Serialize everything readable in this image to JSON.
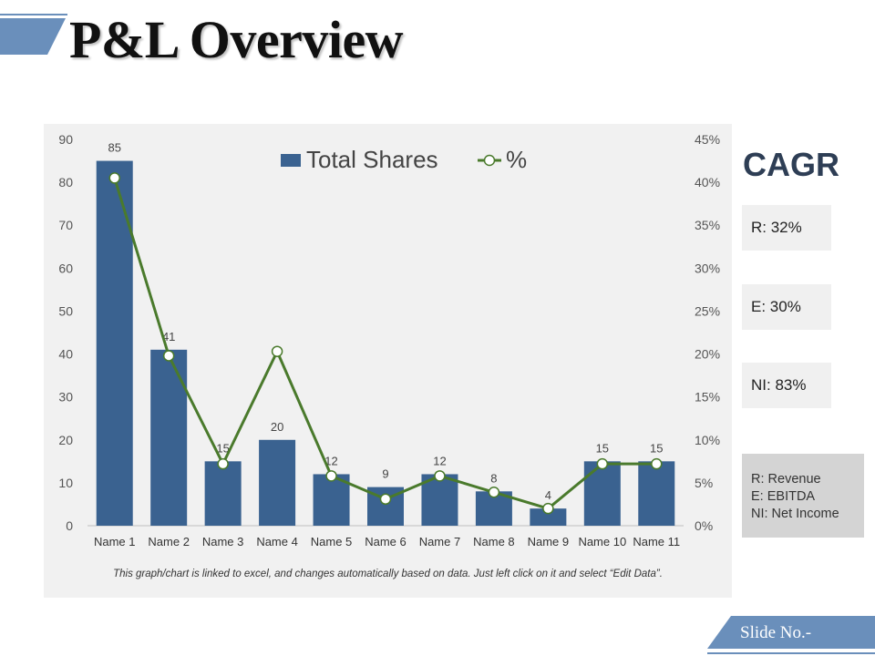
{
  "slide": {
    "title": "P&L Overview",
    "footer_label": "Slide No.-",
    "note": "This graph/chart is linked to excel, and changes automatically based on data. Just left click on it and select “Edit Data”."
  },
  "cagr": {
    "heading": "CAGR",
    "items": [
      {
        "label": "R: 32%"
      },
      {
        "label": "E: 30%"
      },
      {
        "label": "NI: 83%"
      }
    ],
    "legend": [
      "R: Revenue",
      "E: EBITDA",
      "NI: Net Income"
    ]
  },
  "colors": {
    "bar": "#3a6290",
    "line": "#4a7a2c",
    "marker_fill": "#ffffff",
    "accent_blue": "#6a8fbb",
    "panel": "#f1f1f1",
    "heading": "#2e3e55"
  },
  "chart_data": {
    "type": "bar",
    "categories": [
      "Name 1",
      "Name 2",
      "Name 3",
      "Name 4",
      "Name 5",
      "Name 6",
      "Name 7",
      "Name 8",
      "Name 9",
      "Name 10",
      "Name 11"
    ],
    "series": [
      {
        "name": "Total Shares",
        "axis": "left",
        "type": "bar",
        "values": [
          85,
          41,
          15,
          20,
          12,
          9,
          12,
          8,
          4,
          15,
          15
        ]
      },
      {
        "name": "%",
        "axis": "right",
        "type": "line",
        "marker": "circle",
        "values": [
          40.5,
          19.8,
          7.2,
          20.3,
          5.8,
          3.1,
          5.8,
          3.9,
          2.0,
          7.2,
          7.2
        ]
      }
    ],
    "data_labels": [
      "85",
      "41",
      "15",
      "20",
      "12",
      "9",
      "12",
      "8",
      "4",
      "15",
      "15"
    ],
    "left_axis": {
      "ylim": [
        0,
        90
      ],
      "ticks": [
        "0",
        "10",
        "20",
        "30",
        "40",
        "50",
        "60",
        "70",
        "80",
        "90"
      ]
    },
    "right_axis": {
      "ylim": [
        0,
        45
      ],
      "ticks": [
        "0%",
        "5%",
        "10%",
        "15%",
        "20%",
        "25%",
        "30%",
        "35%",
        "40%",
        "45%"
      ]
    },
    "legend": {
      "position": "top",
      "entries": [
        "Total Shares",
        "%"
      ]
    },
    "grid": false
  }
}
